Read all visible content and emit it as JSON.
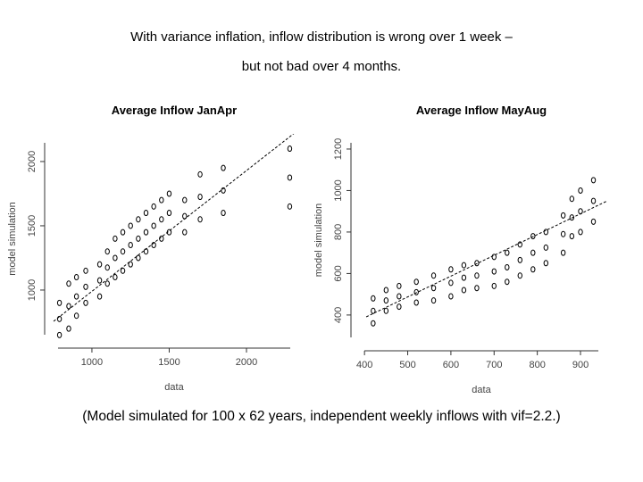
{
  "header": {
    "title_line1": "With variance inflation, inflow distribution is wrong over 1 week –",
    "title_line2": "but not bad over 4 months."
  },
  "chart_data": [
    {
      "type": "scatter",
      "title": "Average Inflow JanApr",
      "x_label": "data",
      "y_label": "model simulation",
      "xlim": [
        723,
        2341
      ],
      "ylim": [
        583,
        2215
      ],
      "xticks": [
        1000,
        1500,
        2000
      ],
      "yticks": [
        1000,
        1500,
        2000
      ],
      "color": "#000000",
      "x": [
        790,
        790,
        790,
        850,
        850,
        850,
        900,
        900,
        900,
        960,
        960,
        960,
        1050,
        1050,
        1050,
        1100,
        1100,
        1100,
        1150,
        1150,
        1150,
        1200,
        1200,
        1200,
        1250,
        1250,
        1250,
        1300,
        1300,
        1300,
        1350,
        1350,
        1350,
        1400,
        1400,
        1400,
        1450,
        1450,
        1450,
        1500,
        1500,
        1500,
        1600,
        1600,
        1600,
        1700,
        1700,
        1700,
        1850,
        1850,
        1850,
        2280,
        2280,
        2280
      ],
      "y": [
        650,
        775,
        900,
        700,
        875,
        1050,
        800,
        950,
        1100,
        900,
        1025,
        1150,
        950,
        1075,
        1200,
        1050,
        1175,
        1300,
        1100,
        1250,
        1400,
        1150,
        1300,
        1450,
        1200,
        1350,
        1500,
        1250,
        1400,
        1550,
        1300,
        1450,
        1600,
        1350,
        1500,
        1650,
        1400,
        1550,
        1700,
        1450,
        1600,
        1750,
        1450,
        1575,
        1700,
        1550,
        1725,
        1900,
        1600,
        1775,
        1950,
        1650,
        1875,
        2100
      ],
      "fit_line": {
        "x": [
          752,
          2341
        ],
        "y": [
          757,
          2250
        ]
      }
    },
    {
      "type": "scatter",
      "title": "Average Inflow MayAug",
      "x_label": "data",
      "y_label": "model simulation",
      "xlim": [
        379,
        962
      ],
      "ylim": [
        249,
        1273
      ],
      "xticks": [
        400,
        500,
        600,
        700,
        800,
        900
      ],
      "yticks": [
        400,
        600,
        800,
        1000,
        1200
      ],
      "color": "#000000",
      "x": [
        420,
        420,
        420,
        450,
        450,
        450,
        480,
        480,
        480,
        520,
        520,
        520,
        560,
        560,
        560,
        600,
        600,
        600,
        630,
        630,
        630,
        660,
        660,
        660,
        700,
        700,
        700,
        730,
        730,
        730,
        760,
        760,
        760,
        790,
        790,
        790,
        820,
        820,
        820,
        860,
        860,
        860,
        880,
        880,
        880,
        900,
        900,
        900,
        930,
        930,
        930
      ],
      "y": [
        360,
        420,
        480,
        420,
        470,
        520,
        440,
        490,
        540,
        460,
        510,
        560,
        470,
        530,
        590,
        490,
        555,
        620,
        520,
        580,
        640,
        530,
        590,
        650,
        540,
        610,
        680,
        560,
        630,
        700,
        590,
        665,
        740,
        620,
        700,
        780,
        650,
        725,
        800,
        700,
        790,
        880,
        780,
        870,
        960,
        800,
        900,
        1000,
        850,
        950,
        1050
      ],
      "fit_line": {
        "x": [
          404,
          962
        ],
        "y": [
          391,
          950
        ]
      }
    }
  ],
  "footer": {
    "note": "(Model simulated for 100 x 62 years, independent weekly inflows with vif=2.2.)"
  }
}
